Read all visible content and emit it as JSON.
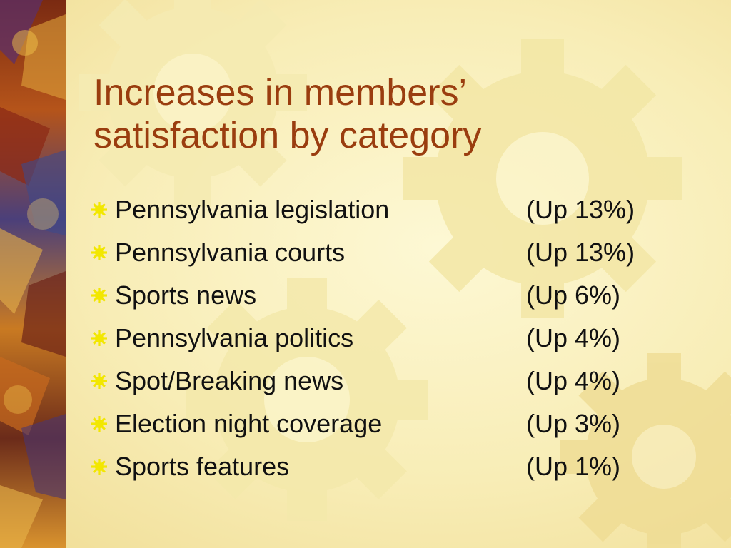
{
  "slide": {
    "title_line1": "Increases in members’",
    "title_line2": "satisfaction by category",
    "items": [
      {
        "category": "Pennsylvania legislation",
        "change": "(Up 13%)"
      },
      {
        "category": "Pennsylvania courts",
        "change": "(Up 13%)"
      },
      {
        "category": "Sports news",
        "change": "(Up 6%)"
      },
      {
        "category": "Pennsylvania politics",
        "change": "(Up 4%)"
      },
      {
        "category": "Spot/Breaking news",
        "change": "(Up 4%)"
      },
      {
        "category": "Election night coverage",
        "change": "(Up 3%)"
      },
      {
        "category": "Sports features",
        "change": "(Up 1%)"
      }
    ]
  },
  "colors": {
    "background": "#fbf3c2",
    "title": "#9a3d0f",
    "text": "#111111",
    "bullet": "#f2e700",
    "gear": "#f4e8a8"
  },
  "icons": {
    "bullet": "sunburst-bullet-icon",
    "background": "gear-icon"
  }
}
